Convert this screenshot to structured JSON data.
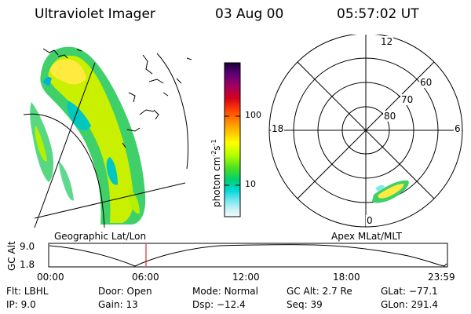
{
  "header": {
    "instrument": "Ultraviolet Imager",
    "date": "03 Aug 00",
    "time": "05:57:02 UT"
  },
  "geo_panel": {
    "label": "Geographic Lat/Lon"
  },
  "colorbar": {
    "label_main": "photon cm",
    "label_exp1": "-2",
    "label_s": "s",
    "label_exp2": "-1",
    "ticks": [
      "100",
      "10"
    ],
    "scale": "log",
    "colors": [
      "#1a0033",
      "#5a0078",
      "#a00060",
      "#d40020",
      "#ff4400",
      "#ff8800",
      "#ffc400",
      "#ffff00",
      "#b4ff00",
      "#50e020",
      "#00d070",
      "#00d8d8",
      "#80e8f0",
      "#d0f4f8",
      "#f4fafc"
    ]
  },
  "polar_panel": {
    "label": "Apex MLat/MLT",
    "mlt_labels": [
      "12",
      "18",
      "6",
      "0"
    ],
    "lat_labels": [
      "60",
      "70",
      "80"
    ]
  },
  "timeline": {
    "ylabel": "GC Alt",
    "yticks": [
      "9.0",
      "1.8"
    ],
    "xticks": [
      "00:00",
      "06:00",
      "12:00",
      "18:00",
      "23:59"
    ],
    "current_time": "05:57"
  },
  "info": {
    "flt_label": "Flt:",
    "flt_value": "LBHL",
    "ip_label": "IP:",
    "ip_value": "9.0",
    "door_label": "Door:",
    "door_value": "Open",
    "gain_label": "Gain:",
    "gain_value": "13",
    "mode_label": "Mode:",
    "mode_value": "Normal",
    "dsp_label": "Dsp:",
    "dsp_value": "−12.4",
    "gcalt_label": "GC Alt:",
    "gcalt_value": "2.7 Re",
    "seq_label": "Seq:",
    "seq_value": "39",
    "glat_label": "GLat:",
    "glat_value": "−77.1",
    "glon_label": "GLon:",
    "glon_value": "291.4"
  }
}
